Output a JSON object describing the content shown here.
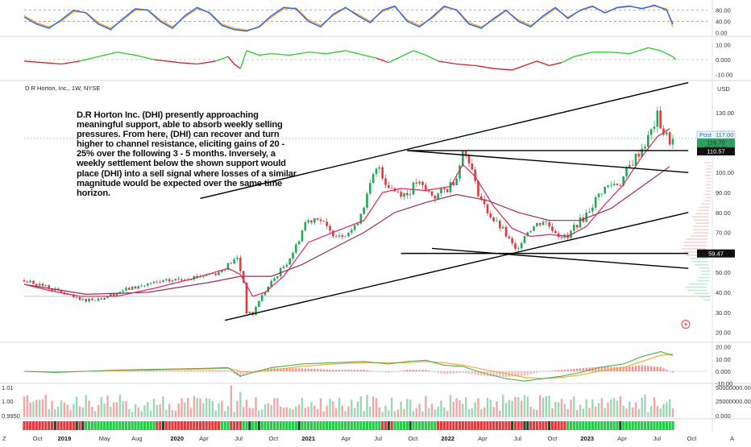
{
  "header": {
    "symbol": "D.R Horton, Inc., 1W, NYSE",
    "currency": "USD"
  },
  "annotation": "D.R Horton Inc. (DHI) presently approaching meaningful support, able to absorb weekly selling pressures. From here, (DHI) can recover and turn higher to channel resistance, eliciting gains of 20 - 25% over the following 3 - 5 months. Inversely, a weekly settlement below the shown support would place (DHI) into a sell signal where losses of a similar magnitude would be expected over the same time horizon.",
  "price_badges": {
    "post_label": "Post",
    "post_value": "117.00",
    "last_value": "116.70",
    "countdown": "20:22:36",
    "resistance": "110.57",
    "support": "59.47"
  },
  "scale_buttons": {
    "zoom": "Z",
    "auto": "A"
  },
  "colors": {
    "up": "#26a65b",
    "down": "#e5383b",
    "ma_fast": "#e0245e",
    "ma_slow": "#9c2a5a",
    "stoch_k": "#2962ff",
    "stoch_d": "#f5a623",
    "macd": "#4caf50",
    "signal": "#f5a623",
    "trendline": "#000000"
  },
  "chart_data": [
    {
      "type": "candlestick",
      "name": "price",
      "y_ticks": [
        "130.00",
        "120.00",
        "110.00",
        "100.00",
        "90.00",
        "80.00",
        "70.00",
        "60.00",
        "50.00",
        "40.00",
        "30.00",
        "20.00"
      ],
      "x_ticks": [
        "Oct",
        "2019",
        "May",
        "Aug",
        "2020",
        "Apr",
        "Jul",
        "Oct",
        "2021",
        "Apr",
        "Jul",
        "Oct",
        "2022",
        "Apr",
        "Jul",
        "Oct",
        "2023",
        "Apr",
        "Jul",
        "Oct"
      ],
      "bold_x_ticks": [
        "2019",
        "2020",
        "2021",
        "2022",
        "2023"
      ],
      "ylim": [
        17,
        140
      ],
      "close_path": [
        [
          0,
          46
        ],
        [
          5,
          44
        ],
        [
          12,
          40
        ],
        [
          18,
          36
        ],
        [
          25,
          37
        ],
        [
          32,
          41
        ],
        [
          40,
          44
        ],
        [
          48,
          46
        ],
        [
          56,
          48
        ],
        [
          63,
          50
        ],
        [
          67,
          55
        ],
        [
          69,
          57
        ],
        [
          71,
          45
        ],
        [
          72,
          30
        ],
        [
          74,
          29
        ],
        [
          76,
          36
        ],
        [
          80,
          45
        ],
        [
          85,
          55
        ],
        [
          88,
          63
        ],
        [
          91,
          75
        ],
        [
          95,
          78
        ],
        [
          99,
          70
        ],
        [
          103,
          69
        ],
        [
          107,
          72
        ],
        [
          111,
          88
        ],
        [
          113,
          98
        ],
        [
          115,
          103
        ],
        [
          117,
          95
        ],
        [
          120,
          91
        ],
        [
          124,
          89
        ],
        [
          127,
          95
        ],
        [
          130,
          91
        ],
        [
          133,
          88
        ],
        [
          137,
          92
        ],
        [
          140,
          98
        ],
        [
          141,
          106
        ],
        [
          142,
          110
        ],
        [
          144,
          107
        ],
        [
          146,
          94
        ],
        [
          149,
          83
        ],
        [
          152,
          76
        ],
        [
          155,
          71
        ],
        [
          157,
          66
        ],
        [
          159,
          61
        ],
        [
          161,
          66
        ],
        [
          163,
          71
        ],
        [
          165,
          73
        ],
        [
          168,
          76
        ],
        [
          171,
          72
        ],
        [
          173,
          69
        ],
        [
          176,
          67
        ],
        [
          178,
          73
        ],
        [
          181,
          77
        ],
        [
          184,
          84
        ],
        [
          187,
          91
        ],
        [
          190,
          94
        ],
        [
          193,
          95
        ],
        [
          196,
          103
        ],
        [
          199,
          110
        ],
        [
          202,
          117
        ],
        [
          205,
          128
        ],
        [
          207,
          120
        ],
        [
          209,
          116
        ]
      ],
      "moving_average_fast_path": [
        [
          0,
          44
        ],
        [
          8,
          41
        ],
        [
          18,
          38
        ],
        [
          30,
          38
        ],
        [
          42,
          42
        ],
        [
          55,
          47
        ],
        [
          66,
          52
        ],
        [
          70,
          49
        ],
        [
          74,
          38
        ],
        [
          78,
          40
        ],
        [
          84,
          48
        ],
        [
          92,
          65
        ],
        [
          100,
          70
        ],
        [
          110,
          76
        ],
        [
          116,
          90
        ],
        [
          122,
          92
        ],
        [
          130,
          91
        ],
        [
          138,
          93
        ],
        [
          142,
          104
        ],
        [
          146,
          98
        ],
        [
          152,
          83
        ],
        [
          158,
          72
        ],
        [
          164,
          68
        ],
        [
          170,
          69
        ],
        [
          176,
          68
        ],
        [
          182,
          73
        ],
        [
          188,
          84
        ],
        [
          194,
          94
        ],
        [
          200,
          108
        ],
        [
          205,
          118
        ],
        [
          209,
          122
        ]
      ],
      "moving_average_slow_path": [
        [
          0,
          44
        ],
        [
          20,
          39
        ],
        [
          40,
          40
        ],
        [
          60,
          45
        ],
        [
          70,
          48
        ],
        [
          80,
          48
        ],
        [
          90,
          54
        ],
        [
          100,
          62
        ],
        [
          110,
          70
        ],
        [
          120,
          80
        ],
        [
          130,
          85
        ],
        [
          140,
          89
        ],
        [
          150,
          86
        ],
        [
          160,
          80
        ],
        [
          170,
          76
        ],
        [
          180,
          76
        ],
        [
          190,
          82
        ],
        [
          200,
          93
        ],
        [
          209,
          103
        ]
      ],
      "trendlines": [
        {
          "from": [
            57,
            87
          ],
          "to": [
            215,
            145
          ]
        },
        {
          "from": [
            65,
            26
          ],
          "to": [
            215,
            80
          ]
        },
        {
          "from": [
            124,
            111
          ],
          "to": [
            215,
            100
          ]
        },
        {
          "from": [
            124,
            111
          ],
          "to": [
            215,
            111
          ]
        },
        {
          "from": [
            132,
            62
          ],
          "to": [
            215,
            52
          ]
        },
        {
          "from": [
            122,
            59.5
          ],
          "to": [
            215,
            59.5
          ]
        }
      ],
      "horizontal_levels": [
        117,
        110.57,
        59.47,
        38
      ]
    },
    {
      "type": "line",
      "name": "stochastic",
      "y_ticks": [
        "80.00",
        "40.00",
        "0.00"
      ],
      "ylim": [
        -5,
        105
      ],
      "series_k": [
        [
          0,
          55
        ],
        [
          4,
          30
        ],
        [
          8,
          15
        ],
        [
          12,
          45
        ],
        [
          16,
          80
        ],
        [
          20,
          70
        ],
        [
          24,
          30
        ],
        [
          28,
          10
        ],
        [
          32,
          50
        ],
        [
          36,
          85
        ],
        [
          40,
          80
        ],
        [
          44,
          40
        ],
        [
          48,
          15
        ],
        [
          52,
          60
        ],
        [
          56,
          90
        ],
        [
          60,
          70
        ],
        [
          64,
          25
        ],
        [
          68,
          10
        ],
        [
          72,
          5
        ],
        [
          76,
          20
        ],
        [
          80,
          60
        ],
        [
          84,
          90
        ],
        [
          88,
          85
        ],
        [
          92,
          40
        ],
        [
          96,
          20
        ],
        [
          100,
          65
        ],
        [
          104,
          90
        ],
        [
          108,
          60
        ],
        [
          112,
          35
        ],
        [
          116,
          80
        ],
        [
          120,
          95
        ],
        [
          124,
          40
        ],
        [
          128,
          20
        ],
        [
          132,
          55
        ],
        [
          136,
          95
        ],
        [
          140,
          80
        ],
        [
          144,
          30
        ],
        [
          148,
          15
        ],
        [
          152,
          50
        ],
        [
          156,
          80
        ],
        [
          160,
          40
        ],
        [
          164,
          20
        ],
        [
          168,
          60
        ],
        [
          172,
          90
        ],
        [
          176,
          50
        ],
        [
          180,
          80
        ],
        [
          184,
          95
        ],
        [
          188,
          70
        ],
        [
          192,
          90
        ],
        [
          196,
          95
        ],
        [
          200,
          85
        ],
        [
          204,
          98
        ],
        [
          208,
          80
        ],
        [
          210,
          30
        ]
      ],
      "series_d": [
        [
          0,
          60
        ],
        [
          4,
          35
        ],
        [
          8,
          20
        ],
        [
          12,
          40
        ],
        [
          16,
          75
        ],
        [
          20,
          72
        ],
        [
          24,
          35
        ],
        [
          28,
          15
        ],
        [
          32,
          45
        ],
        [
          36,
          80
        ],
        [
          40,
          82
        ],
        [
          44,
          45
        ],
        [
          48,
          20
        ],
        [
          52,
          55
        ],
        [
          56,
          85
        ],
        [
          60,
          72
        ],
        [
          64,
          30
        ],
        [
          68,
          15
        ],
        [
          72,
          8
        ],
        [
          76,
          18
        ],
        [
          80,
          55
        ],
        [
          84,
          85
        ],
        [
          88,
          88
        ],
        [
          92,
          45
        ],
        [
          96,
          25
        ],
        [
          100,
          60
        ],
        [
          104,
          88
        ],
        [
          108,
          65
        ],
        [
          112,
          40
        ],
        [
          116,
          75
        ],
        [
          120,
          92
        ],
        [
          124,
          45
        ],
        [
          128,
          25
        ],
        [
          132,
          50
        ],
        [
          136,
          90
        ],
        [
          140,
          82
        ],
        [
          144,
          35
        ],
        [
          148,
          20
        ],
        [
          152,
          45
        ],
        [
          156,
          78
        ],
        [
          160,
          45
        ],
        [
          164,
          25
        ],
        [
          168,
          55
        ],
        [
          172,
          85
        ],
        [
          176,
          55
        ],
        [
          180,
          78
        ],
        [
          184,
          92
        ],
        [
          188,
          72
        ],
        [
          192,
          88
        ],
        [
          196,
          93
        ],
        [
          200,
          87
        ],
        [
          204,
          95
        ],
        [
          208,
          85
        ],
        [
          210,
          20
        ]
      ],
      "levels": [
        80,
        40
      ]
    },
    {
      "type": "line",
      "name": "momentum",
      "y_ticks": [
        "10.00",
        "0.000",
        "-10.00"
      ],
      "ylim": [
        -13,
        13
      ],
      "values": [
        [
          0,
          -1
        ],
        [
          6,
          -2
        ],
        [
          12,
          -3
        ],
        [
          18,
          -1
        ],
        [
          22,
          1
        ],
        [
          26,
          3
        ],
        [
          30,
          5
        ],
        [
          36,
          3
        ],
        [
          42,
          0
        ],
        [
          50,
          -2
        ],
        [
          56,
          -3
        ],
        [
          62,
          -1
        ],
        [
          66,
          2
        ],
        [
          68,
          -3
        ],
        [
          70,
          -6
        ],
        [
          72,
          6
        ],
        [
          76,
          3
        ],
        [
          80,
          4
        ],
        [
          86,
          3
        ],
        [
          92,
          5
        ],
        [
          98,
          4
        ],
        [
          104,
          6
        ],
        [
          110,
          3
        ],
        [
          114,
          1
        ],
        [
          118,
          -2
        ],
        [
          122,
          2
        ],
        [
          126,
          6
        ],
        [
          130,
          3
        ],
        [
          134,
          -1
        ],
        [
          140,
          -3
        ],
        [
          146,
          -4
        ],
        [
          152,
          -6
        ],
        [
          158,
          -7
        ],
        [
          162,
          -4
        ],
        [
          166,
          -1
        ],
        [
          170,
          -4
        ],
        [
          174,
          -2
        ],
        [
          178,
          2
        ],
        [
          184,
          5
        ],
        [
          190,
          5
        ],
        [
          196,
          4
        ],
        [
          202,
          8
        ],
        [
          206,
          6
        ],
        [
          210,
          2
        ],
        [
          211,
          0
        ]
      ]
    },
    {
      "type": "line",
      "name": "macd",
      "y_ticks": [
        "20.00",
        "10.00",
        "0.000",
        "-10.00"
      ],
      "ylim": [
        -12,
        21
      ],
      "macd_line": [
        [
          0,
          0
        ],
        [
          10,
          -1
        ],
        [
          20,
          0
        ],
        [
          30,
          1
        ],
        [
          40,
          1.5
        ],
        [
          50,
          2
        ],
        [
          60,
          2.5
        ],
        [
          66,
          3
        ],
        [
          70,
          -4
        ],
        [
          74,
          -1
        ],
        [
          80,
          3
        ],
        [
          90,
          6
        ],
        [
          100,
          7
        ],
        [
          110,
          8
        ],
        [
          118,
          6
        ],
        [
          124,
          8
        ],
        [
          130,
          9
        ],
        [
          136,
          5
        ],
        [
          142,
          4
        ],
        [
          148,
          -1
        ],
        [
          156,
          -6
        ],
        [
          162,
          -8
        ],
        [
          168,
          -6
        ],
        [
          174,
          -4
        ],
        [
          180,
          -1
        ],
        [
          186,
          3
        ],
        [
          194,
          6
        ],
        [
          200,
          12
        ],
        [
          206,
          16
        ],
        [
          210,
          13
        ]
      ],
      "signal_line": [
        [
          0,
          0
        ],
        [
          10,
          -0.5
        ],
        [
          20,
          0
        ],
        [
          30,
          0.5
        ],
        [
          40,
          1
        ],
        [
          50,
          1.5
        ],
        [
          60,
          2
        ],
        [
          66,
          2.5
        ],
        [
          70,
          0
        ],
        [
          74,
          -1
        ],
        [
          80,
          1
        ],
        [
          90,
          4
        ],
        [
          100,
          6
        ],
        [
          110,
          7
        ],
        [
          118,
          7
        ],
        [
          124,
          7
        ],
        [
          130,
          8
        ],
        [
          136,
          7
        ],
        [
          142,
          5
        ],
        [
          148,
          2
        ],
        [
          156,
          -2
        ],
        [
          162,
          -5
        ],
        [
          168,
          -6
        ],
        [
          174,
          -5
        ],
        [
          180,
          -3
        ],
        [
          186,
          0
        ],
        [
          194,
          3
        ],
        [
          200,
          8
        ],
        [
          206,
          13
        ],
        [
          210,
          14
        ]
      ]
    },
    {
      "type": "bar",
      "name": "volume",
      "y_ticks_left": [
        "1.01",
        "1.00",
        "0.9950"
      ],
      "y_ticks_right": [
        "50000000.00",
        "25000000.00",
        "0.000"
      ]
    }
  ]
}
